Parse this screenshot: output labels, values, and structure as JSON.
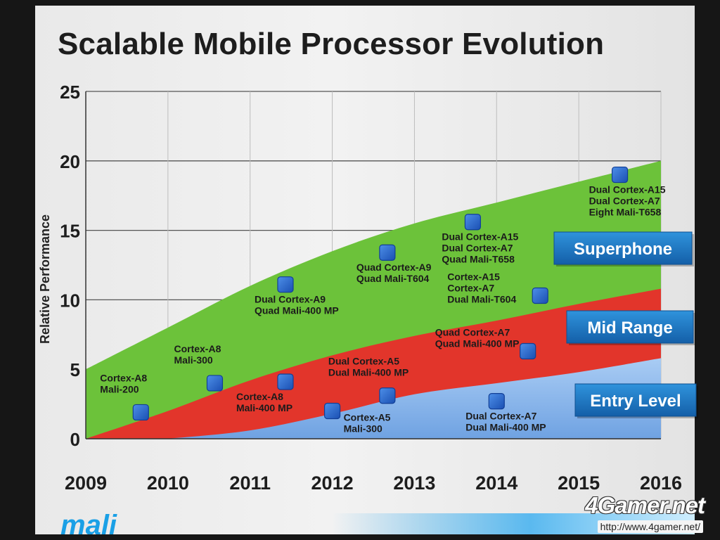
{
  "title": "Scalable Mobile Processor Evolution",
  "logo_text": "mali",
  "watermark": {
    "brand": "4Gamer.net",
    "url": "http://www.4gamer.net/"
  },
  "colors": {
    "superphone": "#6cc23a",
    "mid_range": "#e2352b",
    "entry_level": "#7fb0ea",
    "marker": "#2f6fd6",
    "label_box": "#1c7cc6"
  },
  "chart_data": {
    "type": "area",
    "title": "Scalable Mobile Processor Evolution",
    "xlabel": "",
    "ylabel": "Relative Performance",
    "x_ticks": [
      "2009",
      "2010",
      "2011",
      "2012",
      "2013",
      "2014",
      "2015",
      "2016"
    ],
    "xlim": [
      2009,
      2016
    ],
    "y_ticks": [
      "0",
      "5",
      "10",
      "15",
      "20",
      "25"
    ],
    "ylim": [
      0,
      25
    ],
    "grid": true,
    "series": [
      {
        "name": "Superphone",
        "x": [
          2009,
          2010,
          2011,
          2012,
          2013,
          2014,
          2015,
          2016
        ],
        "values": [
          5.0,
          8.0,
          11.0,
          13.5,
          15.5,
          17.0,
          18.5,
          20.0
        ]
      },
      {
        "name": "Mid Range",
        "x": [
          2009,
          2010,
          2011,
          2012,
          2013,
          2014,
          2015,
          2016
        ],
        "values": [
          0.0,
          2.0,
          4.2,
          6.0,
          7.4,
          8.5,
          9.7,
          10.8
        ]
      },
      {
        "name": "Entry Level",
        "x": [
          2010,
          2011,
          2012,
          2013,
          2014,
          2015,
          2016
        ],
        "values": [
          0.0,
          0.6,
          1.8,
          3.2,
          4.0,
          4.8,
          5.8
        ]
      }
    ],
    "points": [
      {
        "x": 2009.67,
        "y": 1.9,
        "label": [
          "Cortex-A8",
          "Mali-200"
        ],
        "label_side": "above-left"
      },
      {
        "x": 2010.57,
        "y": 4.0,
        "label": [
          "Cortex-A8",
          "Mali-300"
        ],
        "label_side": "above-left"
      },
      {
        "x": 2011.43,
        "y": 11.1,
        "label": [
          "Dual Cortex-A9",
          "Quad Mali-400 MP"
        ],
        "label_side": "below"
      },
      {
        "x": 2011.43,
        "y": 4.1,
        "label": [
          "Cortex-A8",
          "Mali-400 MP"
        ],
        "label_side": "below-left"
      },
      {
        "x": 2012.0,
        "y": 2.0,
        "label": [
          "Cortex-A5",
          "Mali-300"
        ],
        "label_side": "right"
      },
      {
        "x": 2012.67,
        "y": 13.4,
        "label": [
          "Quad Cortex-A9",
          "Quad Mali-T604"
        ],
        "label_side": "below"
      },
      {
        "x": 2012.67,
        "y": 3.1,
        "label": [
          "Dual Cortex-A5",
          "Dual Mali-400 MP"
        ],
        "label_side": "above"
      },
      {
        "x": 2013.71,
        "y": 15.6,
        "label": [
          "Dual Cortex-A15",
          "Dual Cortex-A7",
          "Quad Mali-T658"
        ],
        "label_side": "below"
      },
      {
        "x": 2014.53,
        "y": 10.3,
        "label": [
          "Cortex-A15",
          "Cortex-A7",
          "Dual Mali-T604"
        ],
        "label_side": "left"
      },
      {
        "x": 2014.38,
        "y": 6.3,
        "label": [
          "Quad Cortex-A7",
          "Quad Mali-400 MP"
        ],
        "label_side": "left"
      },
      {
        "x": 2014.0,
        "y": 2.7,
        "label": [
          "Dual Cortex-A7",
          "Dual Mali-400 MP"
        ],
        "label_side": "below"
      },
      {
        "x": 2015.5,
        "y": 19.0,
        "label": [
          "Dual Cortex-A15",
          "Dual Cortex-A7",
          "Eight Mali-T658"
        ],
        "label_side": "below"
      }
    ],
    "legend": [
      "Superphone",
      "Mid Range",
      "Entry Level"
    ],
    "legend_position": "right"
  }
}
